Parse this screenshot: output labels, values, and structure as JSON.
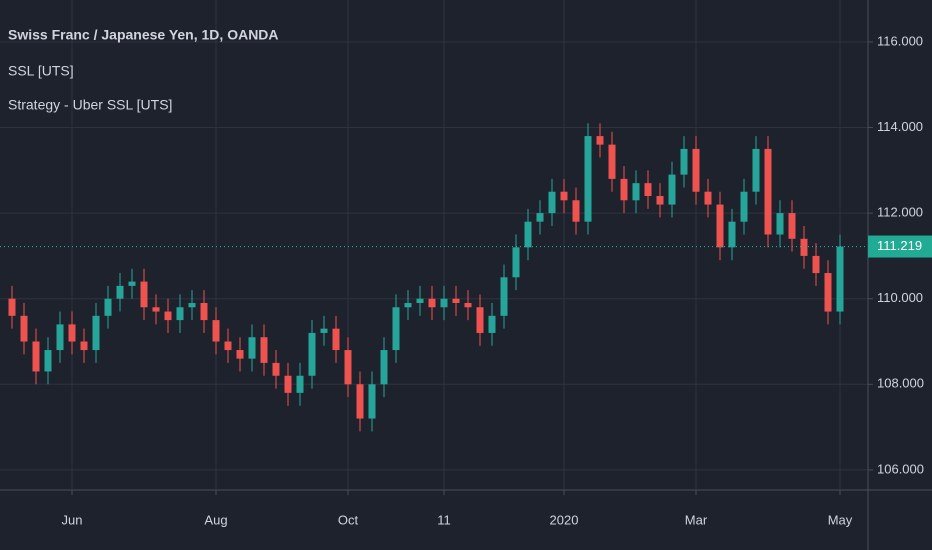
{
  "chart_data": {
    "type": "candlestick",
    "title": "Swiss Franc / Japanese Yen, 1D, OANDA",
    "indicators": [
      "SSL [UTS]",
      "Strategy - Uber SSL [UTS]"
    ],
    "categories": [
      null,
      null,
      null,
      null,
      null,
      "Jun",
      null,
      null,
      null,
      null,
      null,
      null,
      null,
      null,
      null,
      null,
      null,
      "Aug",
      null,
      null,
      null,
      null,
      null,
      null,
      null,
      null,
      null,
      null,
      "Oct",
      null,
      null,
      null,
      null,
      null,
      null,
      null,
      "11",
      null,
      null,
      null,
      null,
      null,
      null,
      null,
      null,
      null,
      "2020",
      null,
      null,
      null,
      null,
      null,
      null,
      null,
      null,
      null,
      null,
      "Mar",
      null,
      null,
      null,
      null,
      null,
      null,
      null,
      null,
      null,
      null,
      null,
      "May"
    ],
    "open": [
      110.0,
      109.6,
      109.0,
      108.3,
      108.8,
      109.4,
      109.0,
      108.8,
      109.6,
      110.0,
      110.3,
      110.4,
      109.8,
      109.7,
      109.5,
      109.8,
      109.9,
      109.5,
      109.0,
      108.8,
      108.6,
      109.1,
      108.5,
      108.2,
      107.8,
      108.2,
      109.2,
      109.3,
      108.8,
      108.0,
      107.2,
      108.0,
      108.8,
      109.8,
      109.9,
      110.0,
      109.8,
      110.0,
      109.9,
      109.8,
      109.2,
      109.6,
      110.5,
      111.2,
      111.8,
      112.0,
      112.5,
      112.3,
      111.8,
      113.8,
      113.6,
      112.8,
      112.3,
      112.7,
      112.4,
      112.2,
      112.9,
      113.5,
      112.5,
      112.2,
      111.2,
      111.8,
      112.5,
      113.5,
      111.5,
      112.0,
      111.4,
      111.0,
      110.6,
      109.7
    ],
    "high": [
      110.3,
      109.9,
      109.3,
      109.1,
      109.7,
      109.7,
      109.3,
      109.9,
      110.3,
      110.6,
      110.7,
      110.7,
      110.1,
      110.0,
      110.1,
      110.2,
      110.2,
      109.8,
      109.3,
      109.1,
      109.4,
      109.4,
      108.8,
      108.5,
      108.5,
      109.5,
      109.6,
      109.6,
      109.1,
      108.3,
      108.3,
      109.1,
      110.1,
      110.2,
      110.3,
      110.3,
      110.3,
      110.3,
      110.2,
      110.1,
      109.9,
      110.8,
      111.5,
      112.1,
      112.3,
      112.8,
      112.8,
      112.6,
      114.1,
      114.1,
      113.9,
      113.1,
      113.0,
      113.0,
      112.7,
      113.2,
      113.8,
      113.8,
      112.8,
      112.5,
      112.1,
      112.8,
      113.8,
      113.8,
      112.3,
      112.3,
      111.7,
      111.3,
      110.9,
      111.5
    ],
    "low": [
      109.3,
      108.7,
      108.0,
      108.0,
      108.5,
      108.7,
      108.5,
      108.5,
      109.3,
      109.7,
      110.0,
      109.5,
      109.4,
      109.2,
      109.2,
      109.5,
      109.2,
      108.7,
      108.5,
      108.3,
      108.3,
      108.2,
      107.9,
      107.5,
      107.5,
      107.9,
      108.9,
      108.5,
      107.7,
      106.9,
      106.9,
      107.7,
      108.5,
      109.5,
      109.6,
      109.5,
      109.5,
      109.6,
      109.5,
      108.9,
      108.9,
      109.3,
      110.2,
      110.9,
      111.5,
      111.7,
      112.0,
      111.5,
      111.5,
      113.3,
      112.5,
      112.0,
      112.0,
      112.1,
      111.9,
      111.9,
      112.6,
      112.2,
      111.9,
      110.9,
      110.9,
      111.5,
      112.2,
      111.2,
      111.2,
      111.1,
      110.7,
      110.3,
      109.4,
      109.4
    ],
    "close": [
      109.6,
      109.0,
      108.3,
      108.8,
      109.4,
      109.0,
      108.8,
      109.6,
      110.0,
      110.3,
      110.4,
      109.8,
      109.7,
      109.5,
      109.8,
      109.9,
      109.5,
      109.0,
      108.8,
      108.6,
      109.1,
      108.5,
      108.2,
      107.8,
      108.2,
      109.2,
      109.3,
      108.8,
      108.0,
      107.2,
      108.0,
      108.8,
      109.8,
      109.9,
      110.0,
      109.8,
      110.0,
      109.9,
      109.8,
      109.2,
      109.6,
      110.5,
      111.2,
      111.8,
      112.0,
      112.5,
      112.3,
      111.8,
      113.8,
      113.6,
      112.8,
      112.3,
      112.7,
      112.4,
      112.2,
      112.9,
      113.5,
      112.5,
      112.2,
      111.2,
      111.8,
      112.5,
      113.5,
      111.5,
      112.0,
      111.4,
      111.0,
      110.6,
      109.7,
      111.219
    ],
    "up_color": "#26a69a",
    "down_color": "#ef5350",
    "last_price": 111.219,
    "last_price_color": "#22ab94",
    "ylim": [
      105.53,
      116.98
    ],
    "yticks": [
      {
        "value": 106,
        "label": "106.000"
      },
      {
        "value": 108,
        "label": "108.000"
      },
      {
        "value": 110,
        "label": "110.000"
      },
      {
        "value": 112,
        "label": "112.000"
      },
      {
        "value": 114,
        "label": "114.000"
      },
      {
        "value": 116,
        "label": "116.000"
      }
    ],
    "grid": true
  }
}
